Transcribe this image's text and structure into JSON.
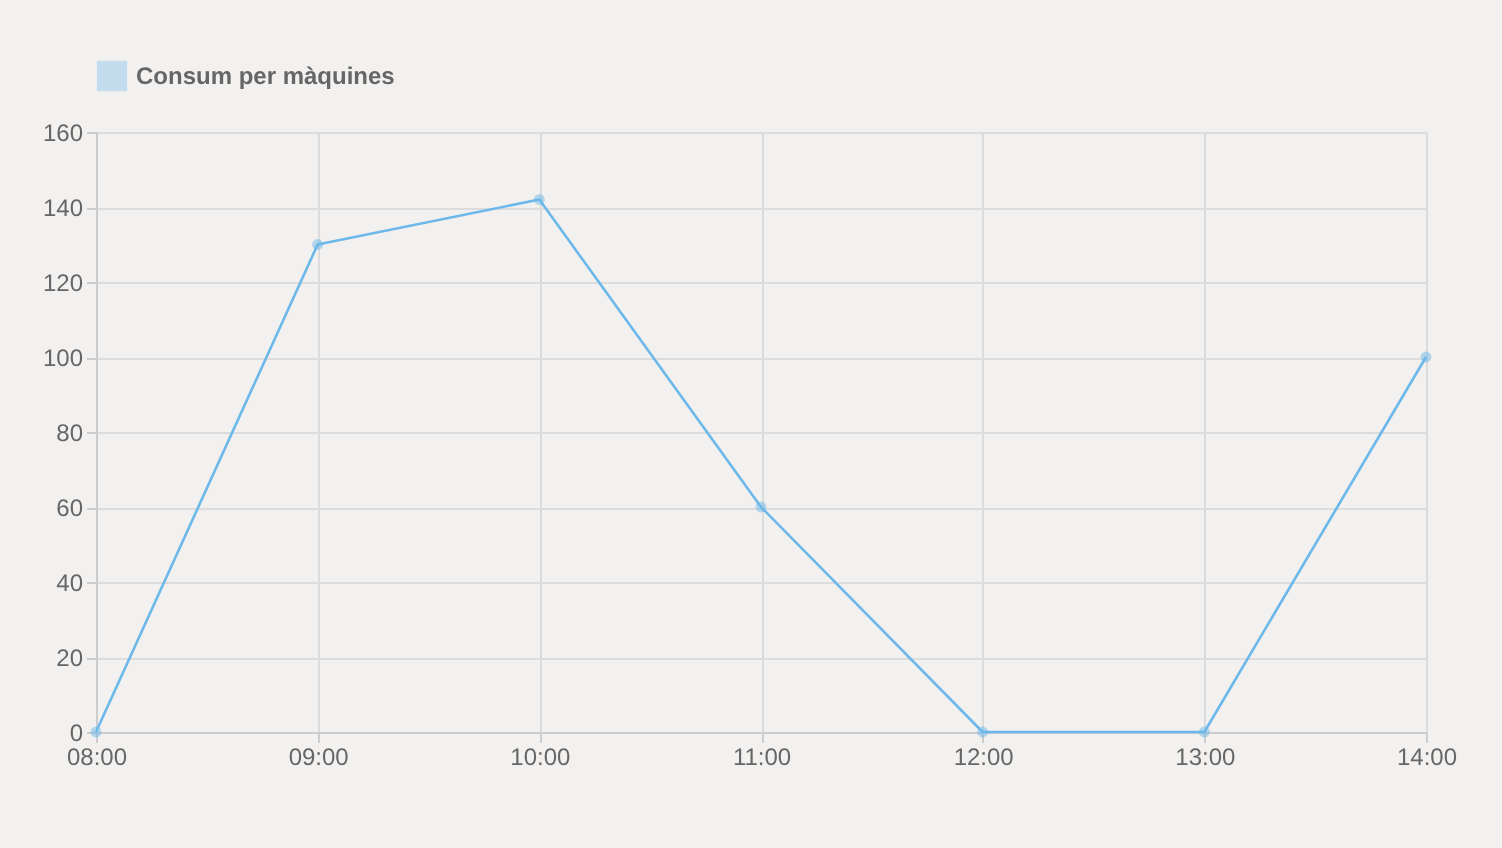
{
  "chart_data": {
    "type": "line",
    "categories": [
      "08:00",
      "09:00",
      "10:00",
      "11:00",
      "12:00",
      "13:00",
      "14:00"
    ],
    "series": [
      {
        "name": "Consum per màquines",
        "color": "#6cb8ea",
        "values": [
          0,
          130,
          142,
          60,
          0,
          0,
          100
        ]
      }
    ],
    "ylim": [
      0,
      160
    ],
    "yticks": [
      0,
      20,
      40,
      60,
      80,
      100,
      120,
      140,
      160
    ],
    "grid": true,
    "legend": "top",
    "marker": "circle"
  }
}
